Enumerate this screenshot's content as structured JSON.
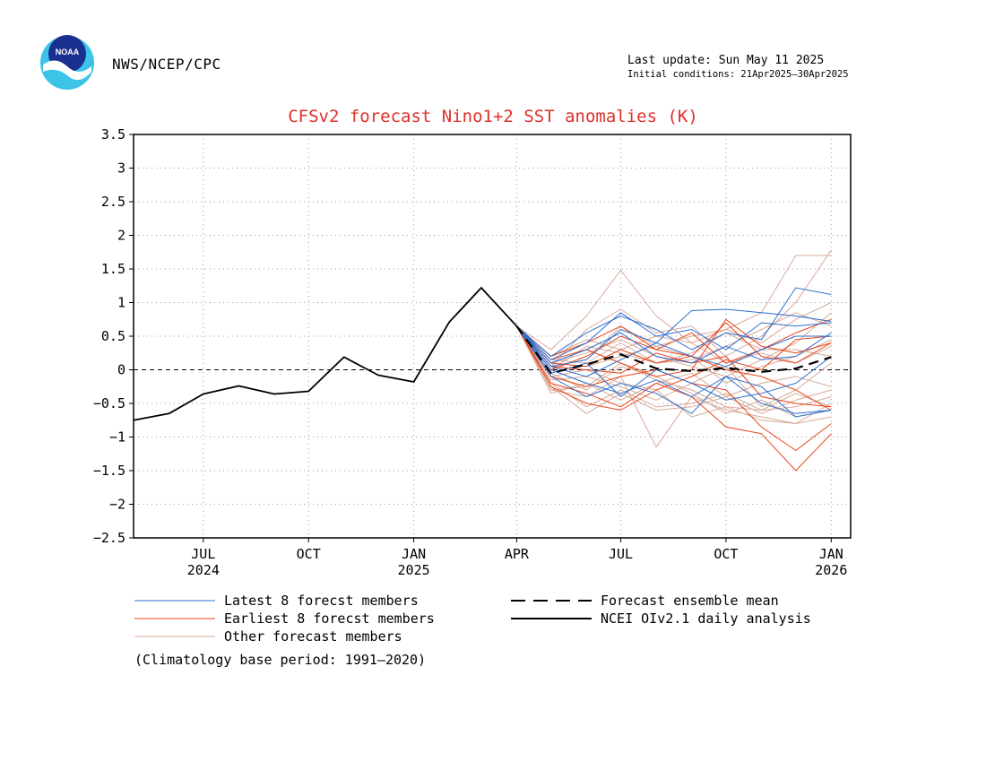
{
  "header": {
    "agency": "NWS/NCEP/CPC",
    "logo_text": "NOAA",
    "last_update": "Last update: Sun May 11 2025",
    "initial_conditions": "Initial conditions: 21Apr2025—30Apr2025"
  },
  "footer": {
    "climatology_note": "(Climatology base period: 1991—2020)"
  },
  "colors": {
    "title": "#e0302a",
    "latest": "#2e6fd0",
    "earliest": "#e8451a",
    "other": "#d7aa98",
    "analysis": "#000000",
    "grid": "#9a9a9a"
  },
  "chart_data": {
    "type": "line",
    "title": "CFSv2 forecast Nino1+2 SST anomalies (K)",
    "ylim": [
      -2.5,
      3.5
    ],
    "y_ticks": [
      {
        "v": 3.5,
        "label": "3.5"
      },
      {
        "v": 3,
        "label": "3"
      },
      {
        "v": 2.5,
        "label": "2.5"
      },
      {
        "v": 2,
        "label": "2"
      },
      {
        "v": 1.5,
        "label": "1.5"
      },
      {
        "v": 1,
        "label": "1"
      },
      {
        "v": 0.5,
        "label": "0.5"
      },
      {
        "v": 0,
        "label": "0"
      },
      {
        "v": -0.5,
        "label": "−0.5"
      },
      {
        "v": -1,
        "label": "−1"
      },
      {
        "v": -1.5,
        "label": "−1.5"
      },
      {
        "v": -2,
        "label": "−2"
      },
      {
        "v": -2.5,
        "label": "−2.5"
      }
    ],
    "xlim": [
      "2024-05-15",
      "2026-02-01"
    ],
    "x_ticks": [
      {
        "date": "2024-07-15",
        "label": "JUL",
        "year": "2024"
      },
      {
        "date": "2024-10-15",
        "label": "OCT",
        "year": ""
      },
      {
        "date": "2025-01-15",
        "label": "JAN",
        "year": "2025"
      },
      {
        "date": "2025-04-15",
        "label": "APR",
        "year": ""
      },
      {
        "date": "2025-07-15",
        "label": "JUL",
        "year": ""
      },
      {
        "date": "2025-10-15",
        "label": "OCT",
        "year": ""
      },
      {
        "date": "2026-01-15",
        "label": "JAN",
        "year": "2026"
      }
    ],
    "grid": true,
    "zero_line": "dashed",
    "forecast_dates": [
      "2025-04-15",
      "2025-05-15",
      "2025-06-15",
      "2025-07-15",
      "2025-08-15",
      "2025-09-15",
      "2025-10-15",
      "2025-11-15",
      "2025-12-15",
      "2026-01-15"
    ],
    "legend": [
      {
        "key": "latest",
        "label": "Latest 8 forecst members",
        "style": "solid",
        "color": "#2e6fd0"
      },
      {
        "key": "earliest",
        "label": "Earliest 8 forecst members",
        "style": "solid",
        "color": "#e8451a"
      },
      {
        "key": "other",
        "label": "Other forecast members",
        "style": "solid",
        "color": "#d7aa98"
      },
      {
        "key": "mean",
        "label": "Forecast ensemble mean",
        "style": "dashed",
        "color": "#000000"
      },
      {
        "key": "analysis",
        "label": "NCEI OIv2.1 daily analysis",
        "style": "solid",
        "color": "#000000"
      }
    ],
    "series": [
      {
        "name": "NCEI OIv2.1 daily analysis",
        "group": "analysis",
        "x": [
          "2024-05-15",
          "2024-06-15",
          "2024-07-15",
          "2024-08-15",
          "2024-09-15",
          "2024-10-15",
          "2024-11-15",
          "2024-12-15",
          "2025-01-15",
          "2025-02-15",
          "2025-03-15",
          "2025-04-15"
        ],
        "y": [
          -0.75,
          -0.65,
          -0.36,
          -0.24,
          -0.36,
          -0.32,
          0.19,
          -0.08,
          -0.18,
          0.71,
          1.22,
          0.65
        ]
      },
      {
        "name": "Forecast ensemble mean",
        "group": "mean",
        "y": [
          0.65,
          -0.05,
          0.08,
          0.23,
          0.02,
          -0.02,
          0.03,
          -0.03,
          0.02,
          0.19
        ]
      },
      {
        "group": "latest",
        "y": [
          0.65,
          0.05,
          0.15,
          0.6,
          0.4,
          0.88,
          0.9,
          0.85,
          0.8,
          0.72
        ]
      },
      {
        "group": "latest",
        "y": [
          0.65,
          0.2,
          0.55,
          0.8,
          0.6,
          0.3,
          0.55,
          0.45,
          1.22,
          1.12
        ]
      },
      {
        "group": "latest",
        "y": [
          0.65,
          -0.1,
          -0.4,
          -0.2,
          -0.35,
          -0.65,
          -0.1,
          -0.25,
          -0.7,
          -0.6
        ]
      },
      {
        "group": "latest",
        "y": [
          0.65,
          0.1,
          0.3,
          0.55,
          0.2,
          0.1,
          0.35,
          0.15,
          0.2,
          0.55
        ]
      },
      {
        "group": "latest",
        "y": [
          0.65,
          0.0,
          -0.2,
          -0.35,
          -0.15,
          -0.4,
          -0.1,
          -0.5,
          -0.65,
          -0.6
        ]
      },
      {
        "group": "latest",
        "y": [
          0.65,
          0.15,
          0.4,
          0.85,
          0.5,
          0.6,
          0.3,
          0.7,
          0.65,
          0.7
        ]
      },
      {
        "group": "latest",
        "y": [
          0.65,
          -0.05,
          0.1,
          -0.4,
          0.0,
          -0.2,
          -0.45,
          -0.35,
          -0.2,
          0.2
        ]
      },
      {
        "group": "latest",
        "y": [
          0.65,
          0.05,
          -0.1,
          0.15,
          0.4,
          0.2,
          0.05,
          0.3,
          0.5,
          0.5
        ]
      },
      {
        "group": "earliest",
        "y": [
          0.65,
          0.2,
          0.4,
          0.65,
          0.3,
          0.55,
          0.1,
          0.3,
          0.55,
          0.75
        ]
      },
      {
        "group": "earliest",
        "y": [
          0.65,
          -0.2,
          -0.35,
          -0.55,
          -0.2,
          -0.4,
          -0.85,
          -0.95,
          -1.5,
          -0.95
        ]
      },
      {
        "group": "earliest",
        "y": [
          0.65,
          0.1,
          0.05,
          0.3,
          0.1,
          0.2,
          0.7,
          0.2,
          0.1,
          0.4
        ]
      },
      {
        "group": "earliest",
        "y": [
          0.65,
          -0.1,
          -0.25,
          -0.1,
          0.0,
          -0.2,
          -0.3,
          -0.85,
          -1.2,
          -0.8
        ]
      },
      {
        "group": "earliest",
        "y": [
          0.65,
          0.0,
          0.2,
          0.5,
          0.3,
          0.2,
          0.0,
          -0.1,
          -0.3,
          -0.6
        ]
      },
      {
        "group": "earliest",
        "y": [
          0.65,
          -0.25,
          -0.5,
          -0.6,
          -0.3,
          -0.1,
          0.15,
          0.0,
          0.45,
          0.5
        ]
      },
      {
        "group": "earliest",
        "y": [
          0.65,
          0.05,
          0.0,
          -0.05,
          0.25,
          0.1,
          0.2,
          -0.4,
          -0.5,
          -0.55
        ]
      },
      {
        "group": "earliest",
        "y": [
          0.65,
          0.15,
          0.3,
          0.1,
          -0.1,
          0.0,
          0.75,
          0.35,
          0.25,
          0.4
        ]
      },
      {
        "group": "other",
        "y": [
          0.65,
          0.3,
          0.8,
          1.48,
          0.8,
          0.4,
          0.6,
          0.85,
          1.7,
          1.7
        ]
      },
      {
        "group": "other",
        "y": [
          0.65,
          -0.3,
          -0.4,
          -0.1,
          -1.15,
          -0.4,
          -0.6,
          -0.7,
          -0.8,
          -0.7
        ]
      },
      {
        "group": "other",
        "y": [
          0.65,
          0.1,
          0.25,
          0.45,
          0.2,
          0.05,
          -0.1,
          0.15,
          0.4,
          0.85
        ]
      },
      {
        "group": "other",
        "y": [
          0.65,
          -0.2,
          -0.55,
          -0.3,
          -0.55,
          -0.5,
          -0.35,
          -0.6,
          -0.55,
          -0.4
        ]
      },
      {
        "group": "other",
        "y": [
          0.65,
          0.05,
          0.15,
          0.65,
          0.35,
          0.5,
          0.6,
          0.4,
          0.75,
          1.0
        ]
      },
      {
        "group": "other",
        "y": [
          0.65,
          -0.1,
          0.0,
          -0.2,
          -0.3,
          -0.7,
          -0.55,
          -0.75,
          -0.8,
          -0.5
        ]
      },
      {
        "group": "other",
        "y": [
          0.65,
          0.0,
          0.35,
          0.25,
          0.1,
          0.15,
          0.35,
          0.6,
          0.85,
          0.65
        ]
      },
      {
        "group": "other",
        "y": [
          0.65,
          -0.35,
          -0.2,
          -0.45,
          -0.2,
          -0.05,
          -0.4,
          -0.2,
          -0.1,
          -0.25
        ]
      },
      {
        "group": "other",
        "y": [
          0.65,
          0.2,
          0.45,
          0.3,
          0.5,
          0.4,
          0.1,
          0.25,
          0.1,
          0.35
        ]
      },
      {
        "group": "other",
        "y": [
          0.65,
          -0.05,
          -0.3,
          0.05,
          -0.1,
          -0.35,
          -0.65,
          -0.45,
          -0.7,
          -0.6
        ]
      },
      {
        "group": "other",
        "y": [
          0.65,
          0.15,
          0.1,
          0.4,
          0.1,
          0.25,
          0.55,
          0.3,
          0.3,
          0.2
        ]
      },
      {
        "group": "other",
        "y": [
          0.65,
          -0.15,
          -0.1,
          -0.25,
          -0.45,
          -0.2,
          0.05,
          -0.55,
          -0.3,
          0.1
        ]
      },
      {
        "group": "other",
        "y": [
          0.65,
          0.05,
          0.6,
          0.9,
          0.55,
          0.65,
          0.2,
          0.5,
          1.0,
          1.78
        ]
      },
      {
        "group": "other",
        "y": [
          0.65,
          -0.25,
          -0.65,
          -0.35,
          -0.6,
          -0.55,
          -0.4,
          -0.65,
          -0.45,
          -0.3
        ]
      },
      {
        "group": "other",
        "y": [
          0.65,
          0.1,
          0.05,
          0.2,
          0.35,
          0.2,
          -0.2,
          0.05,
          0.2,
          0.45
        ]
      },
      {
        "group": "other",
        "y": [
          0.65,
          -0.3,
          -0.25,
          0.1,
          -0.15,
          -0.3,
          -0.55,
          -0.6,
          -0.35,
          -0.55
        ]
      }
    ]
  }
}
